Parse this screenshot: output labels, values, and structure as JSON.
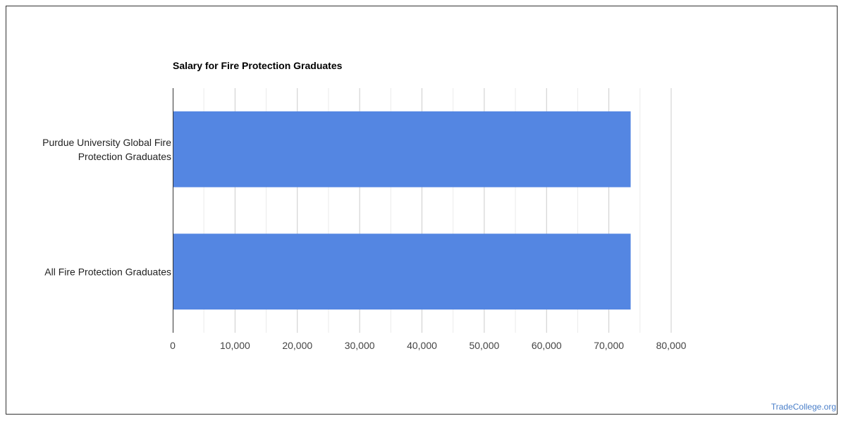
{
  "chart_data": {
    "type": "bar",
    "orientation": "horizontal",
    "title": "Salary for Fire Protection Graduates",
    "categories": [
      [
        "Purdue University Global Fire",
        "Protection Graduates"
      ],
      [
        "All Fire Protection Graduates"
      ]
    ],
    "series": [
      {
        "values": [
          73500,
          73500
        ]
      }
    ],
    "xlim": [
      0,
      80000
    ],
    "xticks": [
      0,
      10000,
      20000,
      30000,
      40000,
      50000,
      60000,
      70000,
      80000
    ],
    "xtick_labels": [
      "0",
      "10,000",
      "20,000",
      "30,000",
      "40,000",
      "50,000",
      "60,000",
      "70,000",
      "80,000"
    ],
    "grid": true,
    "legend": "none",
    "bar_color": "#5486e2"
  },
  "watermark": "TradeCollege.org"
}
